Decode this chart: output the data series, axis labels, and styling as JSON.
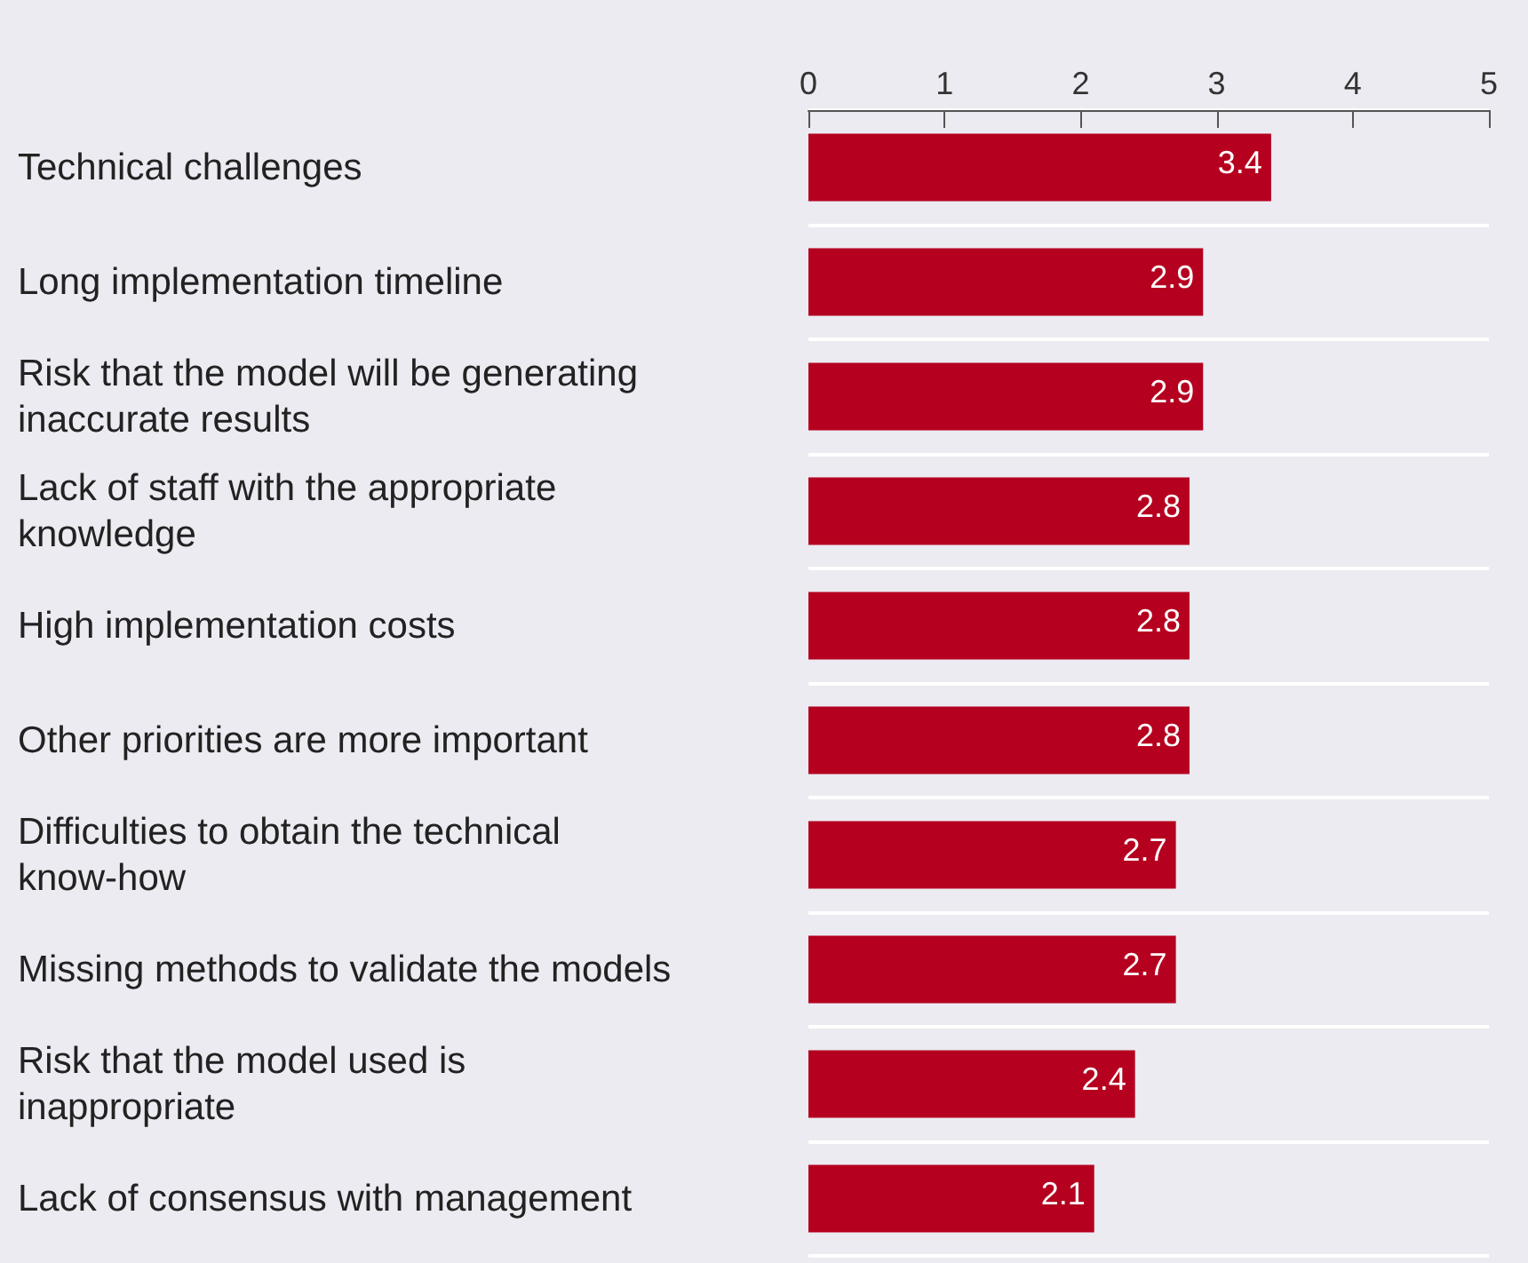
{
  "chart_data": {
    "type": "bar",
    "orientation": "horizontal",
    "categories": [
      "Technical challenges",
      "Long implementation timeline",
      "Risk that the model will be generating inaccurate results",
      "Lack of staff with the appropriate knowledge",
      "High implementation costs",
      "Other priorities are more important",
      "Difficulties to obtain the technical know-how",
      "Missing methods to validate the models",
      "Risk that the model used is inappropriate",
      "Lack of consensus with management"
    ],
    "values": [
      3.4,
      2.9,
      2.9,
      2.8,
      2.8,
      2.8,
      2.7,
      2.7,
      2.4,
      2.1
    ],
    "color": "#b5001f",
    "xlim": [
      0,
      5
    ],
    "xticks": [
      0,
      1,
      2,
      3,
      4,
      5
    ],
    "grid": "y",
    "data_labels": true
  }
}
